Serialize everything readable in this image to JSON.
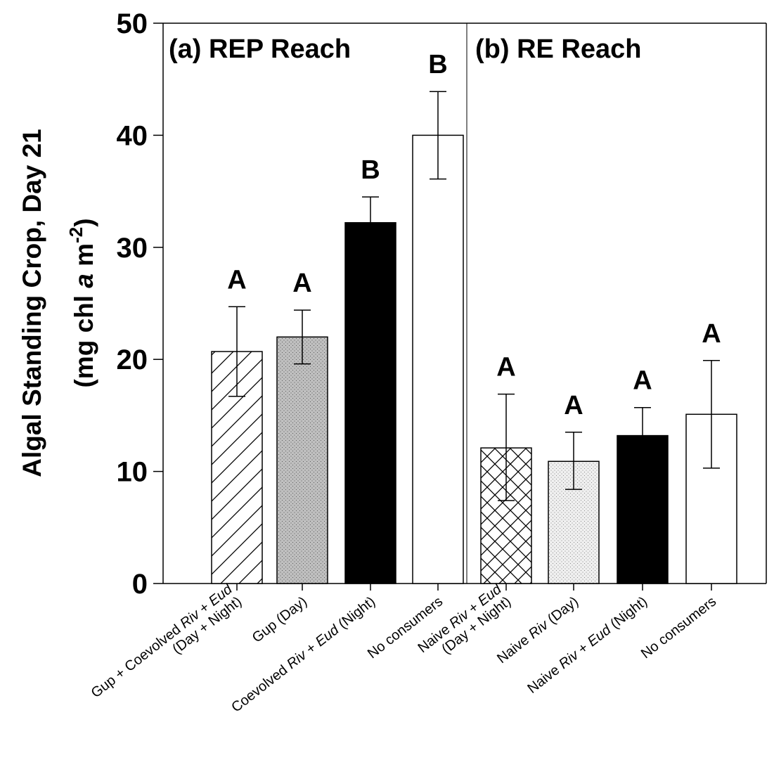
{
  "chart_data": {
    "type": "bar",
    "title": "",
    "xlabel": "",
    "ylabel_line1": "Algal Standing Crop, Day 21",
    "ylabel_line2_prefix": "(mg chl ",
    "ylabel_line2_italic": "a",
    "ylabel_line2_unit": " m",
    "ylabel_line2_sup": "-2",
    "ylabel_line2_suffix": ")",
    "ylim": [
      0,
      50
    ],
    "yticks": [
      "0",
      "10",
      "20",
      "30",
      "40",
      "50"
    ],
    "grid": false,
    "legend": "none",
    "panels": [
      {
        "label": "(a) REP Reach",
        "bars": [
          {
            "label_parts": [
              [
                {
                  "t": "Gup + Coevolved "
                },
                {
                  "t": "Riv",
                  "i": true
                },
                {
                  "t": " + "
                },
                {
                  "t": "Eud",
                  "i": true
                }
              ],
              [
                {
                  "t": "(Day + Night)"
                }
              ]
            ],
            "value": 20.7,
            "err_low": 16.7,
            "err_high": 24.7,
            "fill": "hatch-diagonal",
            "sig": "A"
          },
          {
            "label_parts": [
              [
                {
                  "t": "Gup (Day)"
                }
              ]
            ],
            "value": 22.0,
            "err_low": 19.6,
            "err_high": 24.4,
            "fill": "dots-gray",
            "sig": "A"
          },
          {
            "label_parts": [
              [
                {
                  "t": "Coevolved "
                },
                {
                  "t": "Riv",
                  "i": true
                },
                {
                  "t": " + "
                },
                {
                  "t": "Eud",
                  "i": true
                },
                {
                  "t": " (Night)"
                }
              ]
            ],
            "value": 32.2,
            "err_low": 29.9,
            "err_high": 34.5,
            "fill": "black",
            "sig": "B"
          },
          {
            "label_parts": [
              [
                {
                  "t": "No consumers"
                }
              ]
            ],
            "value": 40.0,
            "err_low": 36.1,
            "err_high": 43.9,
            "fill": "white",
            "sig": "B"
          }
        ]
      },
      {
        "label": "(b) RE Reach",
        "bars": [
          {
            "label_parts": [
              [
                {
                  "t": "Naive "
                },
                {
                  "t": "Riv",
                  "i": true
                },
                {
                  "t": " + "
                },
                {
                  "t": "Eud",
                  "i": true
                }
              ],
              [
                {
                  "t": "(Day + Night)"
                }
              ]
            ],
            "value": 12.1,
            "err_low": 7.4,
            "err_high": 16.9,
            "fill": "crosshatch",
            "sig": "A"
          },
          {
            "label_parts": [
              [
                {
                  "t": "Naive "
                },
                {
                  "t": "Riv",
                  "i": true
                },
                {
                  "t": " (Day)"
                }
              ]
            ],
            "value": 10.9,
            "err_low": 8.4,
            "err_high": 13.5,
            "fill": "dots-light",
            "sig": "A"
          },
          {
            "label_parts": [
              [
                {
                  "t": "Naive "
                },
                {
                  "t": "Riv",
                  "i": true
                },
                {
                  "t": " + "
                },
                {
                  "t": "Eud",
                  "i": true
                },
                {
                  "t": " (Night)"
                }
              ]
            ],
            "value": 13.2,
            "err_low": 10.7,
            "err_high": 15.7,
            "fill": "black",
            "sig": "A"
          },
          {
            "label_parts": [
              [
                {
                  "t": "No consumers"
                }
              ]
            ],
            "value": 15.1,
            "err_low": 10.3,
            "err_high": 19.9,
            "fill": "white",
            "sig": "A"
          }
        ]
      }
    ]
  }
}
